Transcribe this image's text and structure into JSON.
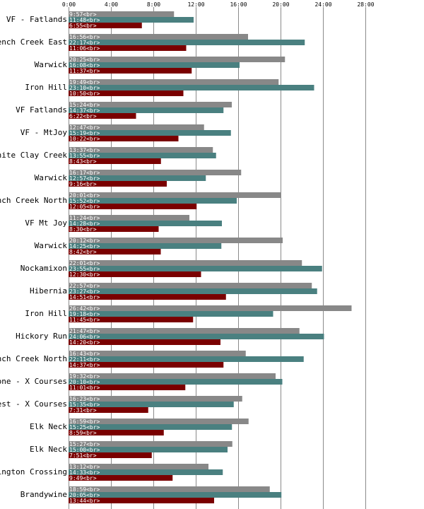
{
  "chart_data": {
    "type": "bar",
    "orientation": "horizontal",
    "title": "",
    "xlabel": "",
    "ylabel": "",
    "xlim": [
      0,
      1800
    ],
    "x_ticks": [
      0,
      240,
      480,
      720,
      960,
      1200,
      1440,
      1680
    ],
    "x_tick_labels": [
      "0:00",
      "4:00",
      "8:00",
      "12:00",
      "16:00",
      "20:00",
      "24:00",
      "28:00"
    ],
    "grid": true,
    "legend": "none",
    "colors": [
      "#888888",
      "#4a8080",
      "#7a0000"
    ],
    "categories": [
      "VF - Fatlands",
      "French Creek East",
      "Warwick",
      "Iron Hill",
      "VF Fatlands",
      "VF - MtJoy",
      "White Clay Creek",
      "Warwick",
      "French Creek North",
      "VF Mt Joy",
      "Warwick",
      "Nockamixon",
      "Hibernia",
      "Iron Hill",
      "Hickory Run",
      "French Creek North",
      "Boone - X Courses",
      "West - X Courses",
      "Elk Neck",
      "Elk Neck",
      "Washington Crossing",
      "Brandywine"
    ],
    "series": [
      {
        "values": [
          597,
          1016,
          1225,
          1189,
          924,
          767,
          817,
          977,
          1201,
          684,
          1212,
          1321,
          1377,
          1602,
          1307,
          1003,
          1172,
          983,
          1019,
          927,
          792,
          1139
        ],
        "labels": [
          "9:57<br>",
          "16:56<br>",
          "20:25<br>",
          "19:49<br>",
          "15:24<br>",
          "12:47<br>",
          "13:37<br>",
          "16:17<br>",
          "20:01<br>",
          "11:24<br>",
          "20:12<br>",
          "22:01<br>",
          "22:57<br>",
          "26:42<br>",
          "21:47<br>",
          "16:43<br>",
          "19:32<br>",
          "16:23<br>",
          "16:59<br>",
          "15:27<br>",
          "13:12<br>",
          "18:59<br>"
        ]
      },
      {
        "values": [
          708,
          1337,
          968,
          1390,
          877,
          919,
          835,
          777,
          952,
          868,
          865,
          1435,
          1407,
          1158,
          1446,
          1331,
          1210,
          935,
          925,
          900,
          873,
          1205
        ],
        "labels": [
          "11:48<br>",
          "22:17<br>",
          "16:08<br>",
          "23:10<br>",
          "14:37<br>",
          "15:19<br>",
          "13:55<br>",
          "12:57<br>",
          "15:52<br>",
          "14:28<br>",
          "14:25<br>",
          "23:55<br>",
          "23:27<br>",
          "19:18<br>",
          "24:06<br>",
          "22:11<br>",
          "20:10<br>",
          "15:35<br>",
          "15:25<br>",
          "15:00<br>",
          "14:33<br>",
          "20:05<br>"
        ]
      },
      {
        "values": [
          415,
          666,
          697,
          650,
          382,
          622,
          523,
          556,
          725,
          510,
          522,
          750,
          891,
          705,
          860,
          877,
          661,
          451,
          539,
          471,
          589,
          824
        ],
        "labels": [
          "6:55<br>",
          "11:06<br>",
          "11:37<br>",
          "10:50<br>",
          "6:22<br>",
          "10:22<br>",
          "8:43<br>",
          "9:16<br>",
          "12:05<br>",
          "8:30<br>",
          "8:42<br>",
          "12:30<br>",
          "14:51<br>",
          "11:45<br>",
          "14:20<br>",
          "14:37<br>",
          "11:01<br>",
          "7:31<br>",
          "8:59<br>",
          "7:51<br>",
          "9:49<br>",
          "13:44<br>"
        ]
      }
    ]
  }
}
